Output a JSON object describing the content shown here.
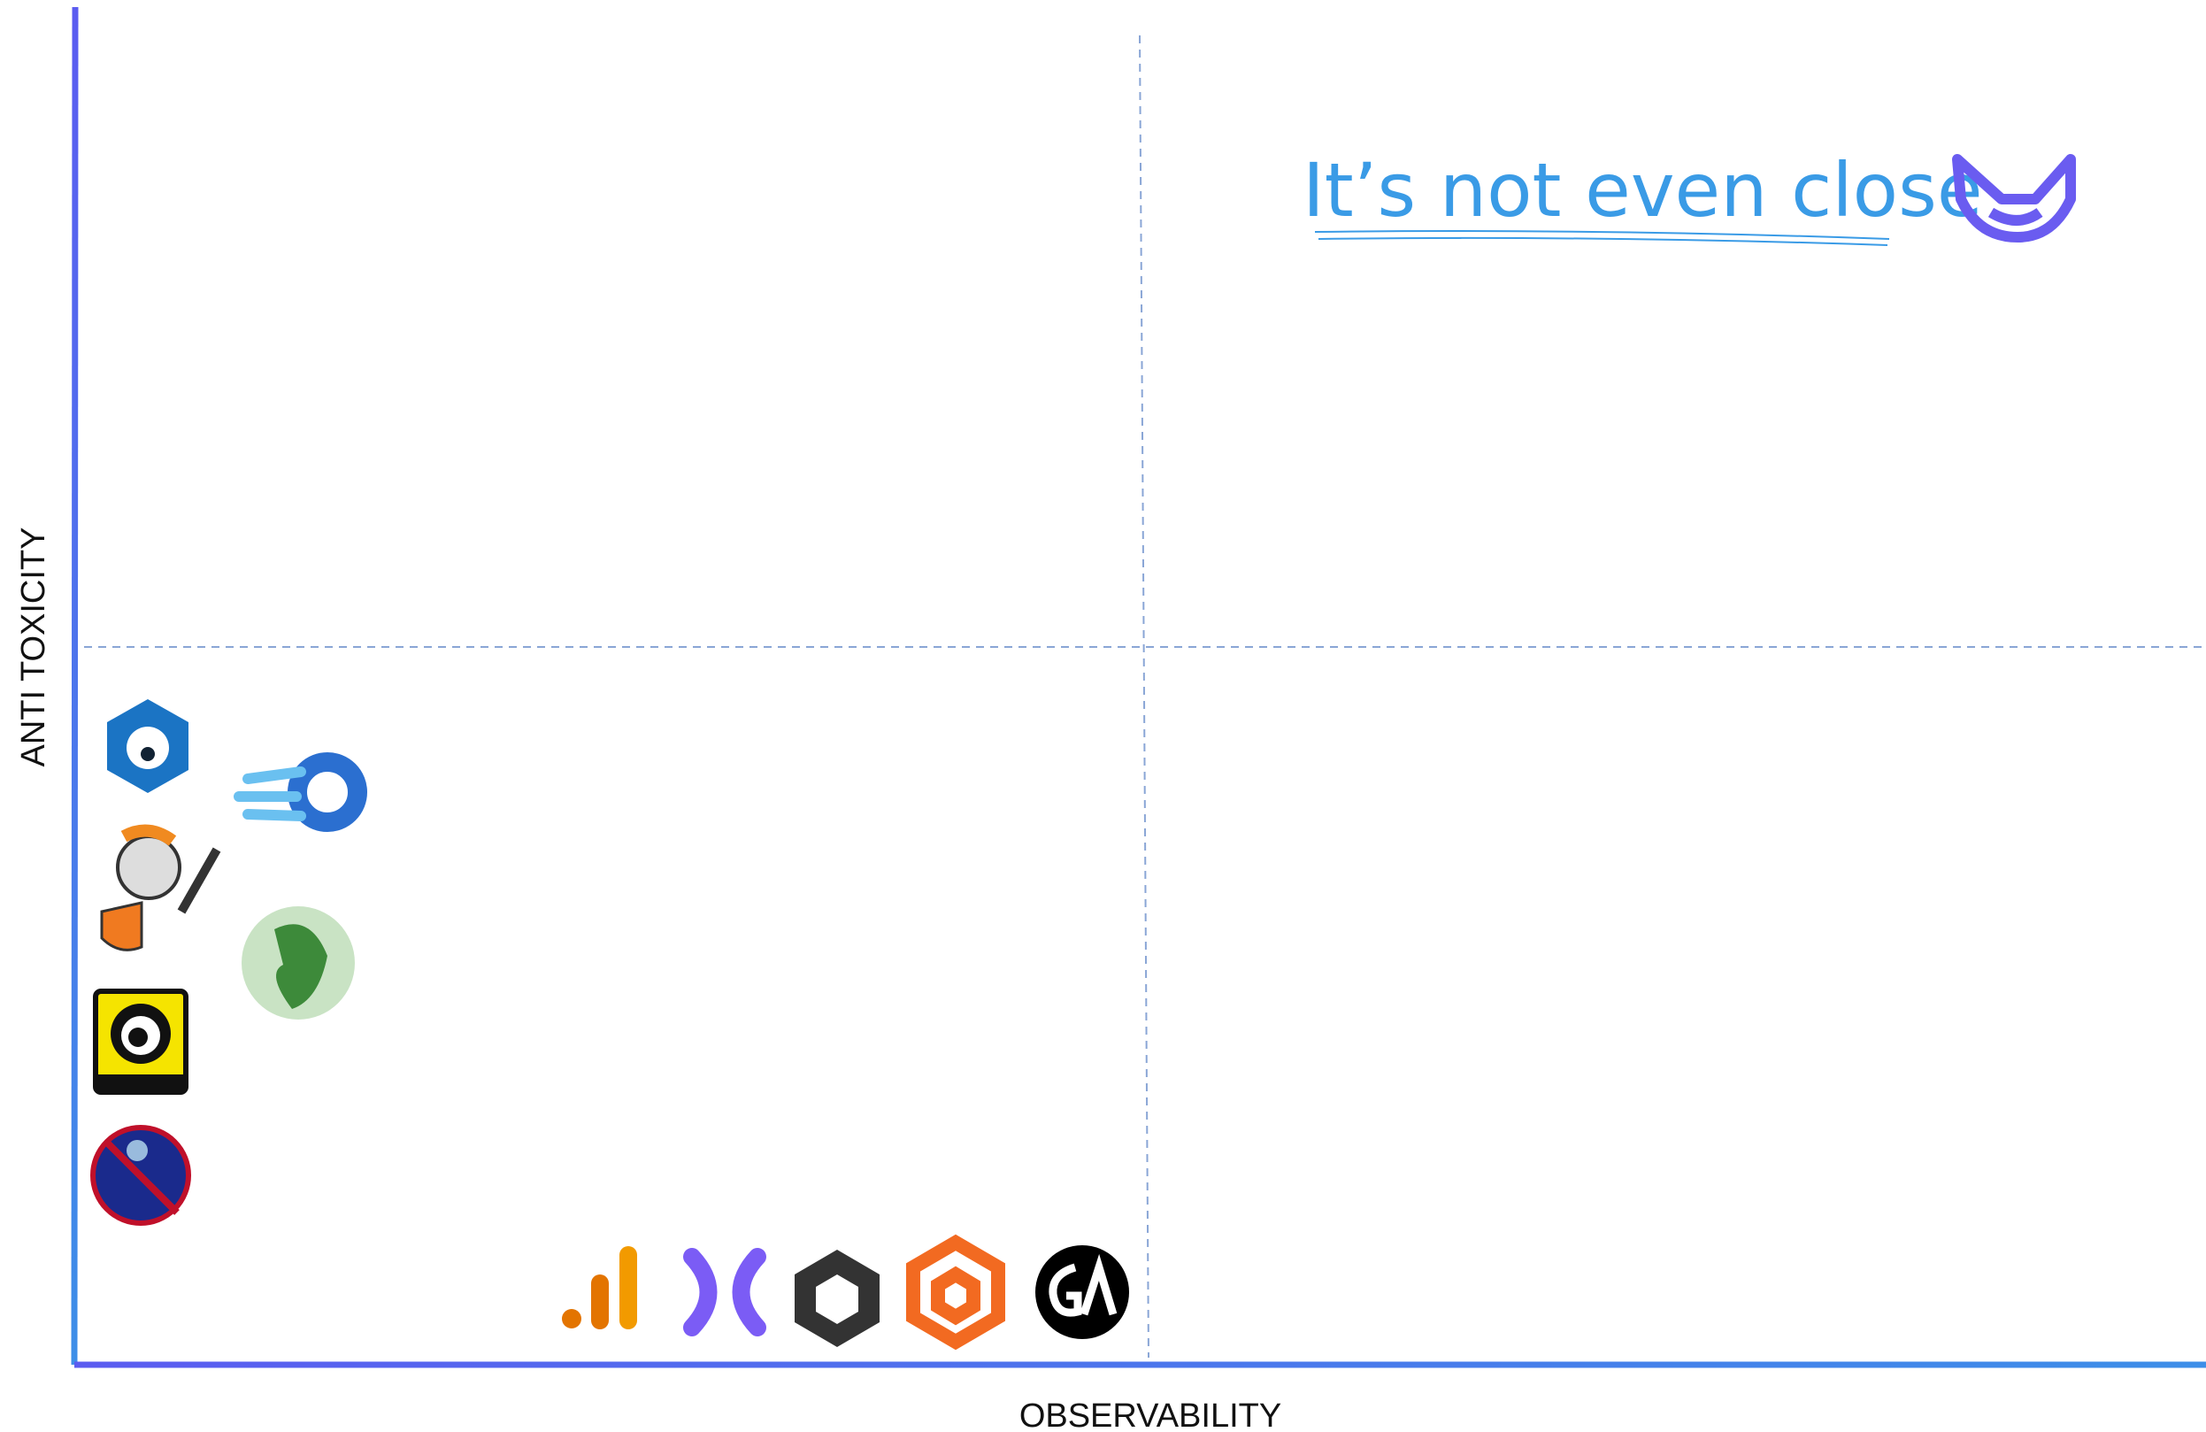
{
  "diagram": {
    "y_axis_label": "ANTI TOXICITY",
    "x_axis_label": "OBSERVABILITY",
    "annotation": "It’s not even close"
  }
}
